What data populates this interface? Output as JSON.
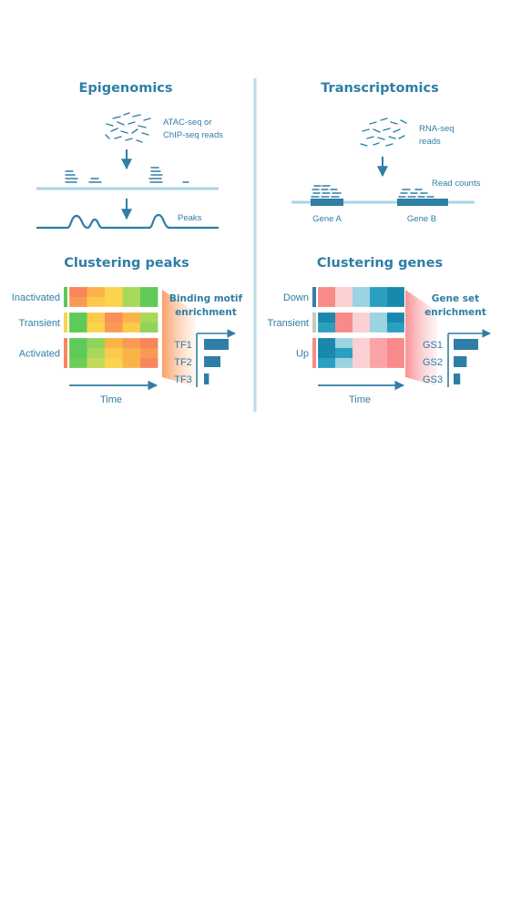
{
  "colors": {
    "accent": "#2f7ea5",
    "divider": "#b9dbe8",
    "track": "#a8d4e6",
    "panel_border": "#ffffff",
    "orange_fan": "#fbb98a",
    "pink_fan": "#fca7ab"
  },
  "epigenomics": {
    "title": "Epigenomics",
    "reads_label_line1": "ATAC-seq or",
    "reads_label_line2": "ChIP-seq reads",
    "peaks_label": "Peaks"
  },
  "transcriptomics": {
    "title": "Transcriptomics",
    "reads_label_line1": "RNA-seq",
    "reads_label_line2": "reads",
    "read_counts_label": "Read counts",
    "gene_a_label": "Gene A",
    "gene_b_label": "Gene B"
  },
  "clustering_peaks": {
    "title": "Clustering peaks",
    "clusters": [
      {
        "name": "Inactivated",
        "side_color": "#5dc75a",
        "rows": [
          [
            "#f9855a",
            "#fbb349",
            "#fbd44d",
            "#a7d85a",
            "#5fca57"
          ],
          [
            "#f99a54",
            "#fbc94b",
            "#fbd44d",
            "#a7d85a",
            "#5fca57"
          ]
        ]
      },
      {
        "name": "Transient",
        "side_color": "#f7d64b",
        "rows": [
          [
            "#5fca57",
            "#fbc94b",
            "#f9905a",
            "#fbb349",
            "#a7d85a"
          ],
          [
            "#5fca57",
            "#fbd44d",
            "#f99a54",
            "#fbc94b",
            "#8ed35c"
          ]
        ]
      },
      {
        "name": "Activated",
        "side_color": "#f9855a",
        "rows": [
          [
            "#5fca57",
            "#8ed35c",
            "#fbb349",
            "#f99a54",
            "#f9855a"
          ],
          [
            "#5fca57",
            "#a7d85a",
            "#fbc94b",
            "#fbb349",
            "#f99a54"
          ],
          [
            "#6fcc58",
            "#c2d95a",
            "#fbd44d",
            "#fbb349",
            "#f9855a"
          ]
        ]
      }
    ],
    "time_label": "Time",
    "enrichment_title_line1": "Binding motif",
    "enrichment_title_line2": "enrichment",
    "items": [
      {
        "name": "TF1",
        "value": 3
      },
      {
        "name": "TF2",
        "value": 2
      },
      {
        "name": "TF3",
        "value": 0.6
      }
    ]
  },
  "clustering_genes": {
    "title": "Clustering genes",
    "clusters": [
      {
        "name": "Down",
        "side_color": "#2f7ea5",
        "rows": [
          [
            "#f98a8a",
            "#fbd0d3",
            "#9bd3e3",
            "#2aa0c0",
            "#1a87ad"
          ],
          [
            "#f98a8a",
            "#fbd0d3",
            "#9bd3e3",
            "#2aa0c0",
            "#1a87ad"
          ]
        ]
      },
      {
        "name": "Transient",
        "side_color": "#c8c8c8",
        "rows": [
          [
            "#1a87ad",
            "#f98a8a",
            "#fbd0d3",
            "#9bd3e3",
            "#1a87ad"
          ],
          [
            "#2aa0c0",
            "#f98a8a",
            "#fbd0d3",
            "#9bd3e3",
            "#2aa0c0"
          ]
        ]
      },
      {
        "name": "Up",
        "side_color": "#f98a8a",
        "rows": [
          [
            "#1a87ad",
            "#9bd3e3",
            "#fbd0d3",
            "#fba3a7",
            "#f98a8a"
          ],
          [
            "#1a87ad",
            "#2aa0c0",
            "#fbd0d3",
            "#fba3a7",
            "#f98a8a"
          ],
          [
            "#2aa0c0",
            "#9bd3e3",
            "#fbd0d3",
            "#fba3a7",
            "#f98a8a"
          ]
        ]
      }
    ],
    "time_label": "Time",
    "enrichment_title_line1": "Gene set",
    "enrichment_title_line2": "enrichment",
    "items": [
      {
        "name": "GS1",
        "value": 3
      },
      {
        "name": "GS2",
        "value": 1.6
      },
      {
        "name": "GS3",
        "value": 0.8
      }
    ]
  }
}
